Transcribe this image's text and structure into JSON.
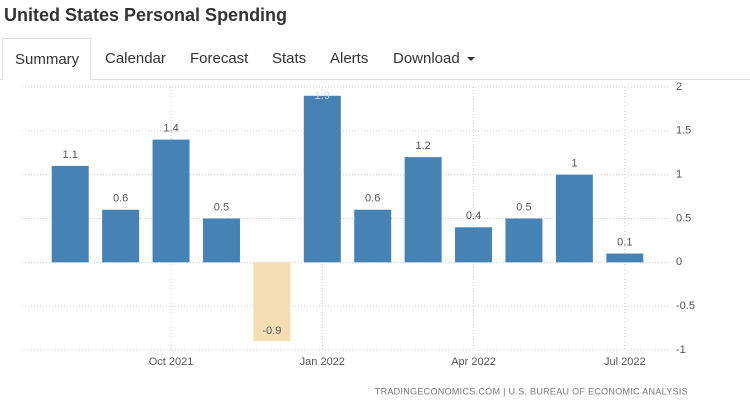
{
  "tabs": [
    "Summary",
    "Calendar",
    "Forecast",
    "Stats",
    "Alerts",
    "Download"
  ],
  "source": "TRADINGECONOMICS.COM | U.S. BUREAU OF ECONOMIC ANALYSIS",
  "chart_data": {
    "type": "bar",
    "title": "United States Personal Spending",
    "categories": [
      null,
      null,
      "Oct 2021",
      null,
      null,
      "Jan 2022",
      null,
      null,
      "Apr 2022",
      null,
      null,
      "Jul 2022"
    ],
    "values": [
      1.1,
      0.6,
      1.4,
      0.5,
      -0.9,
      1.9,
      0.6,
      1.2,
      0.4,
      0.5,
      1,
      0.1
    ],
    "color": "#4682b4",
    "negative_color": "#f5deb3",
    "ylim": [
      -1,
      2
    ],
    "yticks": [
      2,
      1.5,
      1,
      0.5,
      0,
      -0.5,
      -1
    ],
    "grid": true
  }
}
